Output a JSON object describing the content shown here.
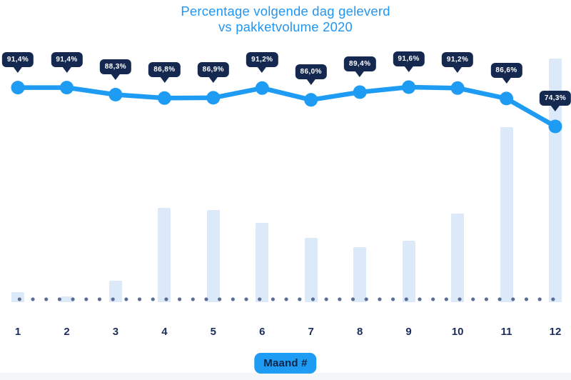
{
  "page": {
    "background": "#ffffff",
    "footer_strip_color": "#f5f6f7"
  },
  "title": {
    "line1": "Percentage volgende dag geleverd",
    "line2": "vs pakketvolume 2020",
    "color": "#2196f3"
  },
  "x_axis": {
    "label_badge": "Maand #",
    "badge_color": "#1e9bf3",
    "badge_text_color": "#0f2547",
    "tick_color": "#1b2d5c"
  },
  "colors": {
    "line": "#1e9bf3",
    "point": "#1e9bf3",
    "tooltip_bg": "#142850",
    "tooltip_text": "#ffffff",
    "bar": "#dbe9f9",
    "dots": "#5a6e96"
  },
  "chart_data": {
    "type": "combo",
    "title": "Percentage volgende dag geleverd vs pakketvolume 2020",
    "categories": [
      1,
      2,
      3,
      4,
      5,
      6,
      7,
      8,
      9,
      10,
      11,
      12
    ],
    "xlabel": "Maand #",
    "legend_visible": false,
    "gridlines": false,
    "baseline_style": "dotted",
    "series": [
      {
        "name": "Percentage volgende dag geleverd",
        "type": "line",
        "unit": "%",
        "values": [
          91.4,
          91.4,
          88.3,
          86.8,
          86.9,
          91.2,
          86.0,
          89.4,
          91.6,
          91.2,
          86.6,
          74.3
        ],
        "labels": [
          "91,4%",
          "91,4%",
          "88,3%",
          "86,8%",
          "86,9%",
          "91,2%",
          "86,0%",
          "89,4%",
          "91,6%",
          "91,2%",
          "86,6%",
          "74,3%"
        ]
      },
      {
        "name": "Pakketvolume 2020",
        "type": "bar",
        "values_pct_of_max": [
          4.1,
          2.3,
          8.8,
          38.7,
          37.8,
          32.6,
          26.4,
          22.6,
          25.2,
          36.4,
          71.8,
          100
        ]
      }
    ]
  }
}
